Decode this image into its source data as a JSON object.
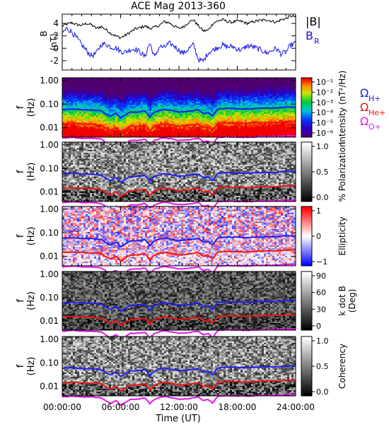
{
  "chart_data": {
    "type": "multi-panel spectrogram",
    "title": "ACE Mag 2013-360",
    "xlabel": "Time (UT)",
    "x_ticks": [
      "00:00:00",
      "06:00:00",
      "12:00:00",
      "18:00:00",
      "24:00:00"
    ],
    "x_range_hours": [
      0,
      24
    ],
    "panels": [
      {
        "id": "timeseries",
        "type": "line",
        "ylabel": "B (nT)",
        "ylim": [
          -3.5,
          5.5
        ],
        "yticks": [
          -2,
          0,
          2,
          4
        ],
        "series": [
          {
            "name": "|B|",
            "color": "#000000",
            "x_hours": [
              0,
              0.5,
              1,
              1.5,
              2,
              2.5,
              3,
              3.5,
              4,
              4.5,
              5,
              5.5,
              6,
              6.5,
              7,
              7.5,
              8,
              8.5,
              9,
              9.5,
              10,
              10.5,
              11,
              11.5,
              12,
              12.5,
              13,
              13.5,
              14,
              14.5,
              15,
              15.5,
              16,
              16.5,
              17,
              17.5,
              18,
              18.5,
              19,
              19.5,
              20,
              20.5,
              21,
              21.5,
              22,
              22.5,
              23,
              23.5,
              24
            ],
            "values": [
              3.6,
              3.9,
              4.1,
              3.8,
              3.7,
              4.0,
              3.8,
              3.2,
              3.5,
              3.0,
              2.4,
              2.0,
              1.7,
              2.1,
              2.6,
              3.1,
              3.3,
              3.6,
              3.2,
              3.4,
              3.7,
              4.3,
              4.1,
              3.6,
              3.2,
              3.5,
              4.2,
              4.6,
              3.6,
              2.8,
              2.9,
              4.0,
              4.4,
              4.6,
              4.3,
              4.2,
              4.4,
              4.3,
              4.0,
              4.2,
              4.4,
              4.5,
              4.6,
              4.4,
              4.2,
              4.6,
              4.8,
              5.2,
              5.1
            ]
          },
          {
            "name": "B",
            "subscript": "R",
            "color": "#1414e6",
            "x_hours": [
              0,
              0.5,
              1,
              1.5,
              2,
              2.5,
              3,
              3.5,
              4,
              4.5,
              5,
              5.5,
              6,
              6.5,
              7,
              7.5,
              8,
              8.5,
              9,
              9.5,
              10,
              10.5,
              11,
              11.5,
              12,
              12.5,
              13,
              13.5,
              14,
              14.5,
              15,
              15.5,
              16,
              16.5,
              17,
              17.5,
              18,
              18.5,
              19,
              19.5,
              20,
              20.5,
              21,
              21.5,
              22,
              22.5,
              23,
              23.5,
              24
            ],
            "values": [
              2.5,
              3.2,
              2.6,
              1.6,
              0.6,
              -0.4,
              -1.2,
              -0.8,
              0.6,
              0.7,
              0.2,
              0.1,
              -0.5,
              -0.6,
              -0.2,
              -0.1,
              -0.6,
              -1.4,
              0.9,
              -1.5,
              0.3,
              0.1,
              0.8,
              0.4,
              -0.3,
              -0.8,
              -0.1,
              0.6,
              -1.8,
              -2.1,
              -0.7,
              -0.3,
              0.2,
              0.5,
              0.2,
              0.3,
              -0.1,
              -0.3,
              0.4,
              0.3,
              0.0,
              -0.3,
              -0.8,
              -0.4,
              0.0,
              -0.9,
              -0.6,
              0.5,
              0.8
            ]
          }
        ]
      },
      {
        "id": "intensity",
        "type": "heatmap",
        "ylabel": "f (Hz)",
        "ylim": [
          0.004,
          1.3
        ],
        "yscale": "log",
        "yticks": [
          0.01,
          0.1,
          1.0
        ],
        "yticklabels": [
          "0.01",
          "0.10",
          "1.00"
        ],
        "colorbar": {
          "label": "Intensity (nT²/Hz)",
          "scale": "log",
          "range": [
            1e-06,
            0.1
          ],
          "ticks": [
            "10⁻¹",
            "10⁻²",
            "10⁻³",
            "10⁻⁴",
            "10⁻⁵",
            "10⁻⁶"
          ],
          "colormap": "rainbow"
        }
      },
      {
        "id": "polarization",
        "type": "heatmap",
        "ylabel": "f (Hz)",
        "ylim": [
          0.004,
          1.3
        ],
        "yscale": "log",
        "yticks": [
          0.01,
          0.1,
          1.0
        ],
        "yticklabels": [
          "0.01",
          "0.10",
          "1.00"
        ],
        "colorbar": {
          "label": "% Polarization",
          "range": [
            0,
            1
          ],
          "ticks": [
            "1.0",
            "0.5",
            "0.0"
          ],
          "colormap": "gray"
        }
      },
      {
        "id": "ellipticity",
        "type": "heatmap",
        "ylabel": "f (Hz)",
        "ylim": [
          0.004,
          1.3
        ],
        "yscale": "log",
        "yticks": [
          0.01,
          0.1,
          1.0
        ],
        "yticklabels": [
          "0.01",
          "0.10",
          "1.00"
        ],
        "colorbar": {
          "label": "Ellipticity",
          "range": [
            -1,
            1
          ],
          "ticks": [
            "1",
            "0",
            "−1"
          ],
          "colormap": "blue-white-red"
        }
      },
      {
        "id": "kdotb",
        "type": "heatmap",
        "ylabel": "f (Hz)",
        "ylim": [
          0.004,
          1.3
        ],
        "yscale": "log",
        "yticks": [
          0.01,
          0.1,
          1.0
        ],
        "yticklabels": [
          "0.01",
          "0.10",
          "1.00"
        ],
        "colorbar": {
          "label": "k dot B (Deg)",
          "label_lines": [
            "k dot B",
            "(Deg)"
          ],
          "range": [
            0,
            90
          ],
          "ticks": [
            "90",
            "60",
            "30",
            "0"
          ],
          "colormap": "gray"
        }
      },
      {
        "id": "coherency",
        "type": "heatmap",
        "ylabel": "f (Hz)",
        "ylim": [
          0.004,
          1.3
        ],
        "yscale": "log",
        "yticks": [
          0.01,
          0.1,
          1.0
        ],
        "yticklabels": [
          "0.01",
          "0.10",
          "1.00"
        ],
        "colorbar": {
          "label": "Coherency",
          "range": [
            0,
            1
          ],
          "ticks": [
            "1.0",
            "0.5",
            "0.0"
          ],
          "colormap": "gray"
        }
      }
    ],
    "overlays": [
      {
        "name": "Ω",
        "subscript": "H+",
        "color": "#1e1ef0",
        "x_hours": [
          0,
          1,
          2,
          3,
          4,
          4.5,
          5,
          5.5,
          6,
          6.5,
          7,
          7.5,
          8,
          8.5,
          9,
          9.5,
          10,
          10.5,
          11,
          12,
          13,
          14,
          14.5,
          15,
          15.5,
          16,
          17,
          18,
          19,
          20,
          21,
          22,
          23,
          24
        ],
        "values": [
          0.058,
          0.062,
          0.058,
          0.057,
          0.052,
          0.038,
          0.03,
          0.042,
          0.026,
          0.034,
          0.046,
          0.046,
          0.048,
          0.052,
          0.028,
          0.046,
          0.054,
          0.06,
          0.056,
          0.046,
          0.05,
          0.058,
          0.04,
          0.044,
          0.03,
          0.062,
          0.066,
          0.064,
          0.062,
          0.066,
          0.068,
          0.068,
          0.074,
          0.074
        ]
      },
      {
        "name": "Ω",
        "subscript": "He+",
        "color": "#f01414",
        "x_hours": [
          0,
          1,
          2,
          3,
          4,
          4.5,
          5,
          5.5,
          6,
          6.5,
          7,
          7.5,
          8,
          8.5,
          9,
          9.5,
          10,
          10.5,
          11,
          12,
          13,
          14,
          14.5,
          15,
          15.5,
          16,
          17,
          18,
          19,
          20,
          21,
          22,
          23,
          24
        ],
        "values": [
          0.0145,
          0.0155,
          0.0145,
          0.0142,
          0.013,
          0.0095,
          0.0075,
          0.0105,
          0.0065,
          0.0085,
          0.0115,
          0.0115,
          0.012,
          0.013,
          0.007,
          0.0115,
          0.0135,
          0.015,
          0.014,
          0.0115,
          0.0125,
          0.0145,
          0.01,
          0.011,
          0.0075,
          0.0155,
          0.0165,
          0.016,
          0.0155,
          0.0165,
          0.017,
          0.017,
          0.0185,
          0.0185
        ]
      },
      {
        "name": "Ω",
        "subscript": "O+",
        "color": "#e614e6",
        "x_hours": [
          0,
          1,
          2,
          3,
          4,
          4.5,
          5,
          5.5,
          6,
          6.5,
          7,
          7.5,
          8,
          8.5,
          9,
          9.5,
          10,
          10.5,
          11,
          12,
          13,
          14,
          14.5,
          15,
          15.5,
          16,
          17,
          18,
          19,
          20,
          21,
          22,
          23,
          24
        ],
        "values": [
          0.0036,
          0.0039,
          0.0036,
          0.0036,
          0.0033,
          0.0024,
          0.0019,
          0.0026,
          0.0016,
          0.0021,
          0.0029,
          0.0029,
          0.003,
          0.0033,
          0.0018,
          0.0029,
          0.0034,
          0.0038,
          0.0035,
          0.0029,
          0.0031,
          0.0036,
          0.0025,
          0.0028,
          0.0019,
          0.0039,
          0.0041,
          0.004,
          0.0039,
          0.0041,
          0.0043,
          0.0043,
          0.0046,
          0.0046
        ]
      }
    ]
  }
}
